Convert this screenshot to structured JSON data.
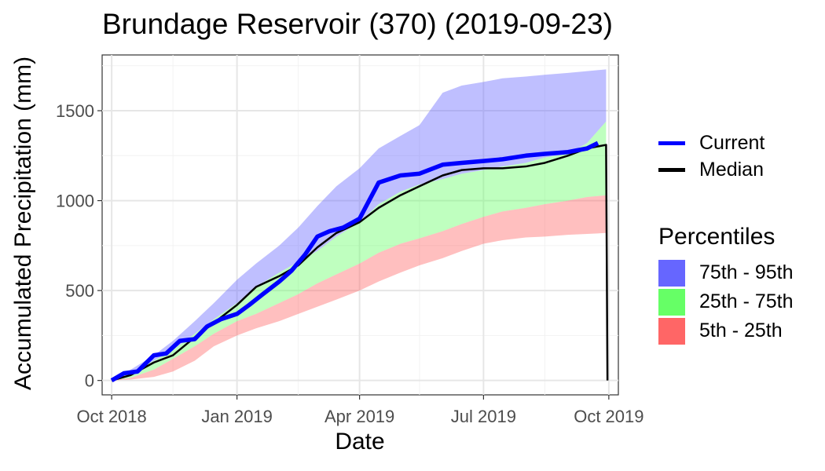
{
  "chart_data": {
    "type": "area",
    "title": "Brundage Reservoir (370) (2019-09-23)",
    "xlabel": "Date",
    "ylabel": "Accumulated Precipitation (mm)",
    "x_ticks": [
      "Oct 2018",
      "Jan 2019",
      "Apr 2019",
      "Jul 2019",
      "Oct 2019"
    ],
    "y_ticks": [
      0,
      500,
      1000,
      1500
    ],
    "xlim": [
      "2018-09-24",
      "2019-10-08"
    ],
    "ylim": [
      -80,
      1810
    ],
    "grid": true,
    "legend_placement": "right",
    "legend": {
      "lines": [
        {
          "name": "Current",
          "color": "#0000ff"
        },
        {
          "name": "Median",
          "color": "#000000"
        }
      ],
      "bands_title": "Percentiles",
      "bands": [
        {
          "name": "75th - 95th",
          "color": "#6666ff"
        },
        {
          "name": "25th - 75th",
          "color": "#66ff66"
        },
        {
          "name": "5th - 25th",
          "color": "#ff6666"
        }
      ]
    },
    "bands": {
      "x": [
        "2018-10-01",
        "2018-10-15",
        "2018-11-01",
        "2018-11-15",
        "2018-12-01",
        "2018-12-15",
        "2019-01-01",
        "2019-01-15",
        "2019-02-01",
        "2019-02-15",
        "2019-03-01",
        "2019-03-15",
        "2019-04-01",
        "2019-04-15",
        "2019-05-01",
        "2019-05-15",
        "2019-06-01",
        "2019-06-15",
        "2019-07-01",
        "2019-07-15",
        "2019-08-01",
        "2019-08-15",
        "2019-09-01",
        "2019-09-15",
        "2019-09-29"
      ],
      "p5": [
        0,
        5,
        20,
        50,
        110,
        190,
        250,
        290,
        330,
        370,
        410,
        450,
        500,
        550,
        600,
        640,
        680,
        720,
        760,
        780,
        795,
        800,
        810,
        815,
        820
      ],
      "p25": [
        0,
        15,
        60,
        120,
        190,
        260,
        330,
        370,
        430,
        480,
        540,
        590,
        650,
        710,
        760,
        790,
        830,
        870,
        910,
        940,
        960,
        980,
        1000,
        1020,
        1030
      ],
      "p75": [
        0,
        40,
        110,
        170,
        260,
        340,
        430,
        520,
        600,
        660,
        720,
        800,
        880,
        980,
        1050,
        1090,
        1120,
        1150,
        1170,
        1190,
        1210,
        1240,
        1260,
        1320,
        1440
      ],
      "p95": [
        0,
        60,
        140,
        220,
        330,
        430,
        560,
        650,
        750,
        850,
        970,
        1080,
        1180,
        1290,
        1360,
        1420,
        1600,
        1640,
        1660,
        1680,
        1690,
        1700,
        1710,
        1720,
        1730
      ]
    },
    "series": [
      {
        "name": "Current",
        "x": [
          "2018-10-01",
          "2018-10-10",
          "2018-10-20",
          "2018-11-01",
          "2018-11-10",
          "2018-11-20",
          "2018-12-01",
          "2018-12-10",
          "2018-12-20",
          "2019-01-01",
          "2019-01-10",
          "2019-01-20",
          "2019-02-01",
          "2019-02-10",
          "2019-02-20",
          "2019-03-01",
          "2019-03-10",
          "2019-03-20",
          "2019-04-01",
          "2019-04-08",
          "2019-04-15",
          "2019-05-01",
          "2019-05-15",
          "2019-06-01",
          "2019-06-15",
          "2019-07-01",
          "2019-07-15",
          "2019-08-01",
          "2019-08-15",
          "2019-09-01",
          "2019-09-15",
          "2019-09-23"
        ],
        "values": [
          0,
          40,
          50,
          140,
          150,
          220,
          230,
          300,
          340,
          370,
          420,
          480,
          550,
          610,
          700,
          800,
          830,
          850,
          900,
          1000,
          1100,
          1140,
          1150,
          1200,
          1210,
          1220,
          1230,
          1250,
          1260,
          1270,
          1290,
          1320
        ]
      },
      {
        "name": "Median",
        "x": [
          "2018-10-01",
          "2018-10-15",
          "2018-11-01",
          "2018-11-15",
          "2018-12-01",
          "2018-12-15",
          "2019-01-01",
          "2019-01-15",
          "2019-02-01",
          "2019-02-15",
          "2019-03-01",
          "2019-03-15",
          "2019-04-01",
          "2019-04-15",
          "2019-05-01",
          "2019-05-15",
          "2019-06-01",
          "2019-06-15",
          "2019-07-01",
          "2019-07-15",
          "2019-08-01",
          "2019-08-15",
          "2019-09-01",
          "2019-09-15",
          "2019-09-29",
          "2019-09-30"
        ],
        "values": [
          0,
          30,
          100,
          140,
          240,
          320,
          420,
          520,
          580,
          640,
          740,
          820,
          880,
          960,
          1030,
          1080,
          1140,
          1170,
          1180,
          1180,
          1190,
          1210,
          1250,
          1290,
          1310,
          0
        ]
      }
    ]
  }
}
